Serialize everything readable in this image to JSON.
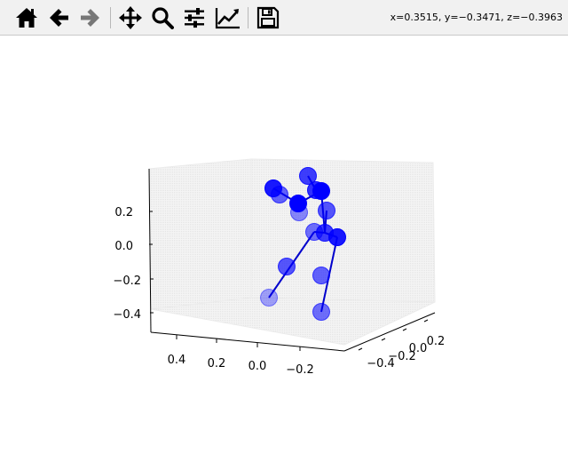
{
  "toolbar": {
    "buttons": [
      {
        "name": "home-button",
        "icon": "home-icon"
      },
      {
        "name": "back-button",
        "icon": "arrow-left-icon"
      },
      {
        "name": "forward-button",
        "icon": "arrow-right-icon"
      },
      {
        "name": "pan-button",
        "icon": "move-icon"
      },
      {
        "name": "zoom-button",
        "icon": "magnifier-icon"
      },
      {
        "name": "configure-subplots-button",
        "icon": "sliders-icon"
      },
      {
        "name": "edit-axis-button",
        "icon": "line-chart-icon"
      },
      {
        "name": "save-button",
        "icon": "floppy-disk-icon"
      }
    ],
    "coords": "x=0.3515, y=−0.3471, z=−0.3963"
  },
  "chart_data": {
    "type": "scatter",
    "projection": "3d",
    "marker_color": "#0000ff",
    "line_color": "#0000cc",
    "z_ticks": [
      "0.2",
      "0.0",
      "−0.2",
      "−0.4"
    ],
    "y_ticks": [
      "0.4",
      "0.2",
      "0.0",
      "−0.2"
    ],
    "x_ticks": [
      "−0.4",
      "−0.2",
      "0.0",
      "0.2"
    ]
  }
}
